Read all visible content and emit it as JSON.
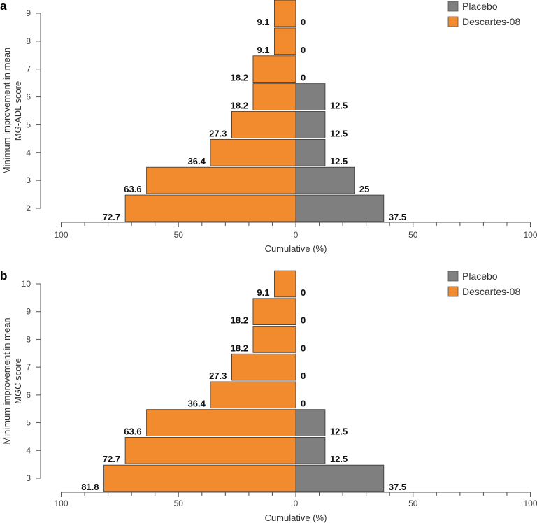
{
  "chart_data": [
    {
      "type": "bar",
      "orientation": "horizontal-diverging",
      "panel_label": "a",
      "ylabel_line1": "Minimum improvement in mean",
      "ylabel_line2": "MG-ADL score",
      "xlabel": "Cumulative (%)",
      "categories": [
        2,
        3,
        4,
        5,
        6,
        7,
        8,
        9
      ],
      "xticks": [
        "100",
        "50",
        "0",
        "50",
        "100"
      ],
      "xlim": [
        -100,
        100
      ],
      "series": [
        {
          "name": "Placebo",
          "color": "#7f7f7f",
          "side": "right",
          "values": [
            37.5,
            25,
            12.5,
            12.5,
            12.5,
            0,
            0,
            0
          ],
          "labels": [
            "37.5",
            "25",
            "12.5",
            "12.5",
            "12.5",
            "0",
            "0",
            "0"
          ]
        },
        {
          "name": "Descartes-08",
          "color": "#f28a2e",
          "side": "left",
          "values": [
            72.7,
            63.6,
            36.4,
            27.3,
            18.2,
            18.2,
            9.1,
            9.1
          ],
          "labels": [
            "72.7",
            "63.6",
            "36.4",
            "27.3",
            "18.2",
            "18.2",
            "9.1",
            "9.1"
          ]
        }
      ],
      "legend": "top-right",
      "grid": false
    },
    {
      "type": "bar",
      "orientation": "horizontal-diverging",
      "panel_label": "b",
      "ylabel_line1": "Minimum improvement in mean",
      "ylabel_line2": "MGC score",
      "xlabel": "Cumulative (%)",
      "categories": [
        3,
        4,
        5,
        6,
        7,
        8,
        9,
        10
      ],
      "xticks": [
        "100",
        "50",
        "0",
        "50",
        "100"
      ],
      "xlim": [
        -100,
        100
      ],
      "series": [
        {
          "name": "Placebo",
          "color": "#7f7f7f",
          "side": "right",
          "values": [
            37.5,
            12.5,
            12.5,
            0,
            0,
            0,
            0,
            0
          ],
          "labels": [
            "37.5",
            "12.5",
            "12.5",
            "0",
            "0",
            "0",
            "0",
            "0"
          ]
        },
        {
          "name": "Descartes-08",
          "color": "#f28a2e",
          "side": "left",
          "values": [
            81.8,
            72.7,
            63.6,
            36.4,
            27.3,
            18.2,
            18.2,
            9.1
          ],
          "labels": [
            "81.8",
            "72.7",
            "63.6",
            "36.4",
            "27.3",
            "18.2",
            "18.2",
            "9.1"
          ]
        }
      ],
      "legend": "top-right",
      "grid": false
    }
  ]
}
